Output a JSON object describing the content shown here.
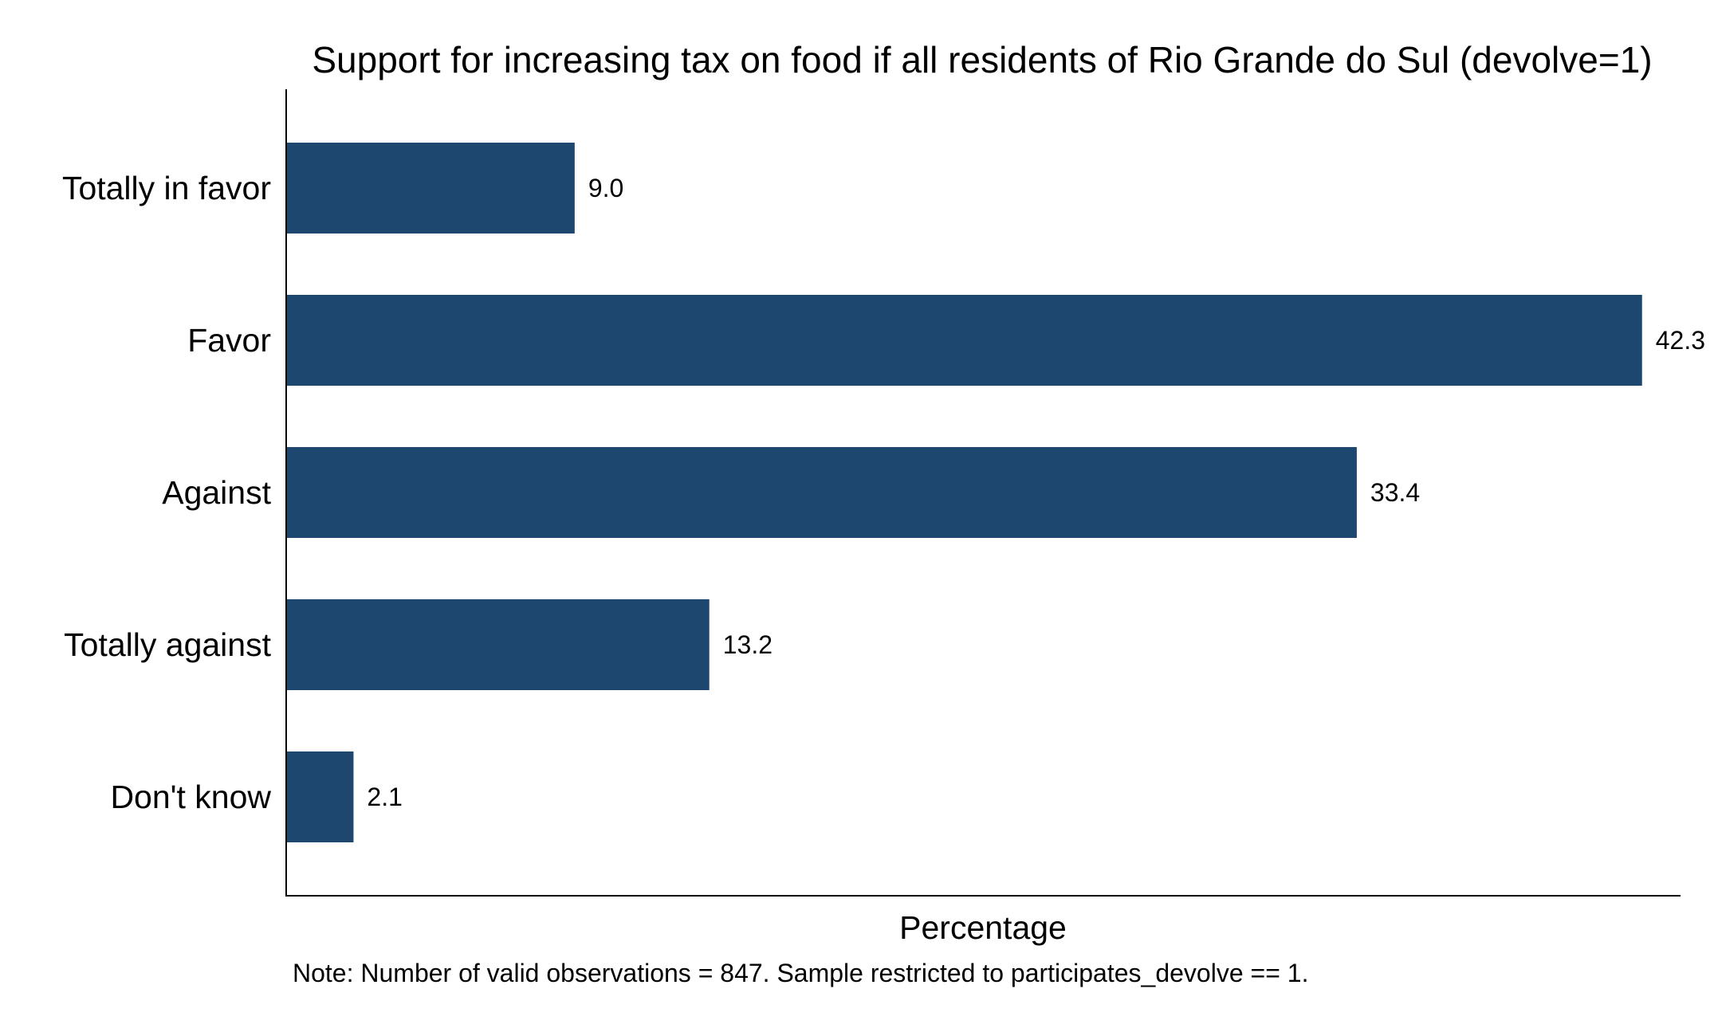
{
  "chart_data": {
    "type": "bar",
    "orientation": "horizontal",
    "title": "Support for increasing tax on food if all residents of Rio Grande do Sul (devolve=1)",
    "xlabel": "Percentage",
    "ylabel": "",
    "categories": [
      "Totally in favor",
      "Favor",
      "Against",
      "Totally against",
      "Don't know"
    ],
    "values": [
      9.0,
      42.3,
      33.4,
      13.2,
      2.1
    ],
    "value_labels": [
      "9.0",
      "42.3",
      "33.4",
      "13.2",
      "2.1"
    ],
    "xlim": [
      0,
      43.5
    ],
    "grid": false,
    "legend": "none",
    "bar_color": "#1d476f",
    "note": "Note: Number of valid observations = 847. Sample restricted to participates_devolve == 1."
  }
}
